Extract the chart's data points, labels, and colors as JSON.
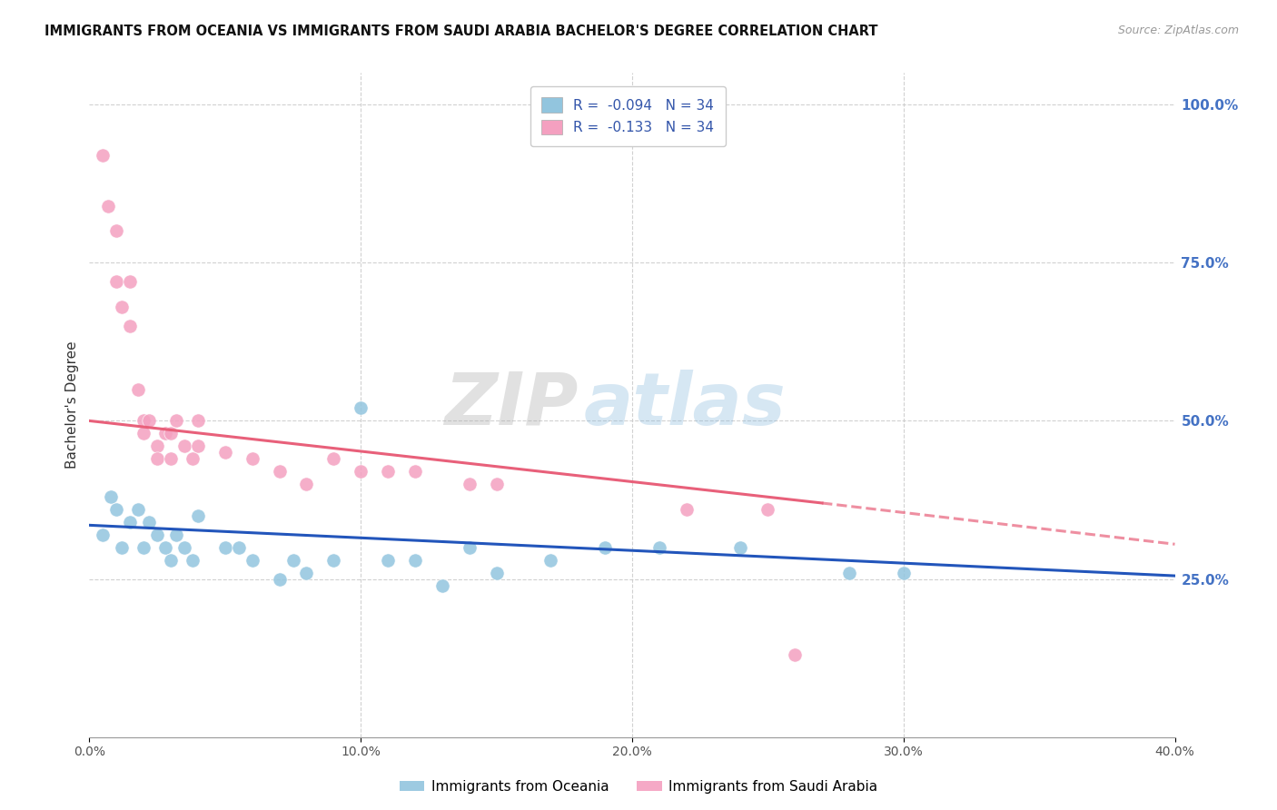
{
  "title": "IMMIGRANTS FROM OCEANIA VS IMMIGRANTS FROM SAUDI ARABIA BACHELOR'S DEGREE CORRELATION CHART",
  "source": "Source: ZipAtlas.com",
  "ylabel": "Bachelor's Degree",
  "ylabel_right_labels": [
    "25.0%",
    "50.0%",
    "75.0%",
    "100.0%"
  ],
  "ylabel_right_values": [
    0.25,
    0.5,
    0.75,
    1.0
  ],
  "legend_entry1": "R =  -0.094   N = 34",
  "legend_entry2": "R =  -0.133   N = 34",
  "legend_label1": "Immigrants from Oceania",
  "legend_label2": "Immigrants from Saudi Arabia",
  "color_oceania": "#92c5de",
  "color_saudi": "#f4a0c0",
  "color_trend_oceania": "#2255bb",
  "color_trend_saudi": "#e8607a",
  "watermark_zip": "ZIP",
  "watermark_atlas": "atlas",
  "xlim": [
    0.0,
    0.4
  ],
  "ylim": [
    0.0,
    1.05
  ],
  "oceania_x": [
    0.005,
    0.008,
    0.01,
    0.012,
    0.015,
    0.018,
    0.02,
    0.022,
    0.025,
    0.028,
    0.03,
    0.032,
    0.035,
    0.038,
    0.04,
    0.05,
    0.055,
    0.06,
    0.07,
    0.075,
    0.08,
    0.09,
    0.1,
    0.11,
    0.12,
    0.13,
    0.14,
    0.15,
    0.17,
    0.19,
    0.21,
    0.24,
    0.28,
    0.3
  ],
  "oceania_y": [
    0.32,
    0.38,
    0.36,
    0.3,
    0.34,
    0.36,
    0.3,
    0.34,
    0.32,
    0.3,
    0.28,
    0.32,
    0.3,
    0.28,
    0.35,
    0.3,
    0.3,
    0.28,
    0.25,
    0.28,
    0.26,
    0.28,
    0.52,
    0.28,
    0.28,
    0.24,
    0.3,
    0.26,
    0.28,
    0.3,
    0.3,
    0.3,
    0.26,
    0.26
  ],
  "saudi_x": [
    0.005,
    0.007,
    0.01,
    0.01,
    0.012,
    0.015,
    0.015,
    0.018,
    0.02,
    0.02,
    0.022,
    0.025,
    0.025,
    0.028,
    0.03,
    0.03,
    0.032,
    0.035,
    0.038,
    0.04,
    0.04,
    0.05,
    0.06,
    0.07,
    0.08,
    0.09,
    0.1,
    0.11,
    0.12,
    0.14,
    0.15,
    0.22,
    0.25,
    0.26
  ],
  "saudi_y": [
    0.92,
    0.84,
    0.8,
    0.72,
    0.68,
    0.72,
    0.65,
    0.55,
    0.5,
    0.48,
    0.5,
    0.46,
    0.44,
    0.48,
    0.48,
    0.44,
    0.5,
    0.46,
    0.44,
    0.5,
    0.46,
    0.45,
    0.44,
    0.42,
    0.4,
    0.44,
    0.42,
    0.42,
    0.42,
    0.4,
    0.4,
    0.36,
    0.36,
    0.13
  ],
  "trend_oceania_x0": 0.0,
  "trend_oceania_y0": 0.335,
  "trend_oceania_x1": 0.4,
  "trend_oceania_y1": 0.255,
  "trend_saudi_solid_x0": 0.0,
  "trend_saudi_solid_y0": 0.5,
  "trend_saudi_solid_x1": 0.27,
  "trend_saudi_solid_y1": 0.37,
  "trend_saudi_dash_x0": 0.27,
  "trend_saudi_dash_y0": 0.37,
  "trend_saudi_dash_x1": 0.4,
  "trend_saudi_dash_y1": 0.305,
  "background_color": "#ffffff",
  "grid_color": "#cccccc"
}
